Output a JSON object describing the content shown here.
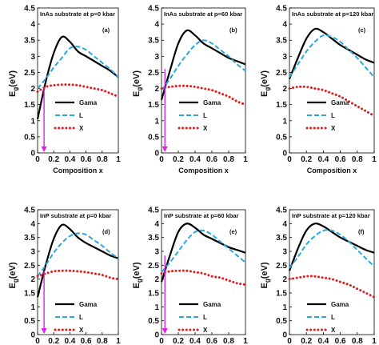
{
  "colors": {
    "Gama": "#000000",
    "L": "#29a8df",
    "X": "#e02020",
    "arrow": "#e020e0",
    "axis": "#000000"
  },
  "chart_data": [
    {
      "type": "line",
      "title": "InAs substrate at  p=0 kbar",
      "panel_label": "(a)",
      "xlabel": "",
      "ylabel": "Eg(eV)",
      "ylabel_main": "E",
      "ylabel_sub": "g",
      "ylabel_rest": "(eV)",
      "xlim": [
        0,
        1
      ],
      "ylim": [
        0,
        4.5
      ],
      "xticks": [
        "0",
        "0.2",
        "0.4",
        "0.6",
        "0.8",
        "1"
      ],
      "yticks": [
        "0",
        "0.5",
        "1",
        "1.5",
        "2",
        "2.5",
        "3",
        "3.5",
        "4",
        "4.5"
      ],
      "arrow_x": 0.08,
      "x": [
        0,
        0.1,
        0.2,
        0.3,
        0.4,
        0.5,
        0.6,
        0.7,
        0.8,
        0.9,
        1.0
      ],
      "series": [
        {
          "name": "Gama",
          "values": [
            1.05,
            2.2,
            3.1,
            3.6,
            3.45,
            3.15,
            3.0,
            2.85,
            2.7,
            2.55,
            2.35
          ]
        },
        {
          "name": "L",
          "values": [
            2.0,
            2.3,
            2.65,
            2.95,
            3.25,
            3.3,
            3.2,
            3.0,
            2.8,
            2.6,
            2.35
          ]
        },
        {
          "name": "X",
          "values": [
            1.9,
            2.05,
            2.1,
            2.12,
            2.12,
            2.1,
            2.05,
            2.0,
            1.95,
            1.85,
            1.75
          ]
        }
      ]
    },
    {
      "type": "line",
      "title": "InAs substrate at  p=60 kbar",
      "panel_label": "(b)",
      "xlabel": "",
      "ylabel": "Eg(eV)",
      "ylabel_main": "E",
      "ylabel_sub": "g",
      "ylabel_rest": "(eV)",
      "xlim": [
        0,
        1
      ],
      "ylim": [
        0,
        4.5
      ],
      "xticks": [
        "0",
        "0.2",
        "0.4",
        "0.6",
        "0.8",
        "1"
      ],
      "yticks": [
        "0",
        "0.5",
        "1",
        "1.5",
        "2",
        "2.5",
        "3",
        "3.5",
        "4",
        "4.5"
      ],
      "arrow_x": 0.04,
      "x": [
        0,
        0.1,
        0.2,
        0.3,
        0.4,
        0.5,
        0.6,
        0.7,
        0.8,
        0.9,
        1.0
      ],
      "series": [
        {
          "name": "Gama",
          "values": [
            1.65,
            2.55,
            3.4,
            3.8,
            3.65,
            3.4,
            3.25,
            3.1,
            2.95,
            2.85,
            2.75
          ]
        },
        {
          "name": "L",
          "values": [
            1.95,
            2.3,
            2.7,
            3.05,
            3.35,
            3.5,
            3.4,
            3.2,
            3.0,
            2.75,
            2.55
          ]
        },
        {
          "name": "X",
          "values": [
            2.0,
            2.05,
            2.08,
            2.08,
            2.05,
            2.0,
            1.95,
            1.85,
            1.75,
            1.6,
            1.5
          ]
        }
      ]
    },
    {
      "type": "line",
      "title": "InAs substrate at  p=120 kbar",
      "panel_label": "(c)",
      "xlabel": "",
      "ylabel": "Eg(eV)",
      "ylabel_main": "E",
      "ylabel_sub": "g",
      "ylabel_rest": "(eV)",
      "xlim": [
        0,
        1
      ],
      "ylim": [
        0,
        4.5
      ],
      "xticks": [
        "0",
        "0.2",
        "0.4",
        "0.6",
        "0.8",
        "1"
      ],
      "yticks": [
        "0",
        "0.5",
        "1",
        "1.5",
        "2",
        "2.5",
        "3",
        "3.5",
        "4",
        "4.5"
      ],
      "arrow_x": null,
      "x": [
        0,
        0.1,
        0.2,
        0.3,
        0.4,
        0.5,
        0.6,
        0.7,
        0.8,
        0.9,
        1.0
      ],
      "series": [
        {
          "name": "Gama",
          "values": [
            2.3,
            2.95,
            3.55,
            3.85,
            3.75,
            3.55,
            3.35,
            3.2,
            3.05,
            2.9,
            2.8
          ]
        },
        {
          "name": "L",
          "values": [
            2.35,
            2.75,
            3.15,
            3.45,
            3.65,
            3.6,
            3.45,
            3.2,
            2.95,
            2.65,
            2.35
          ]
        },
        {
          "name": "X",
          "values": [
            2.0,
            2.05,
            2.05,
            2.0,
            1.95,
            1.85,
            1.75,
            1.6,
            1.45,
            1.3,
            1.15
          ]
        }
      ]
    },
    {
      "type": "line",
      "title": "InP substrate at  p=0 kbar",
      "panel_label": "(d)",
      "xlabel": "",
      "ylabel": "Eg(eV)",
      "ylabel_main": "E",
      "ylabel_sub": "g",
      "ylabel_rest": "(eV)",
      "xlim": [
        0,
        1
      ],
      "ylim": [
        0,
        4.5
      ],
      "xticks": [
        "0",
        "0.2",
        "0.4",
        "0.6",
        "0.8",
        "1"
      ],
      "yticks": [
        "0",
        "0.5",
        "1",
        "1.5",
        "2",
        "2.5",
        "3",
        "3.5",
        "4",
        "4.5"
      ],
      "arrow_x": 0.08,
      "x": [
        0,
        0.1,
        0.2,
        0.3,
        0.4,
        0.5,
        0.6,
        0.7,
        0.8,
        0.9,
        1.0
      ],
      "series": [
        {
          "name": "Gama",
          "values": [
            1.35,
            2.5,
            3.45,
            3.95,
            3.8,
            3.5,
            3.3,
            3.15,
            3.0,
            2.85,
            2.75
          ]
        },
        {
          "name": "L",
          "values": [
            2.1,
            2.5,
            2.95,
            3.3,
            3.55,
            3.65,
            3.6,
            3.4,
            3.2,
            2.95,
            2.75
          ]
        },
        {
          "name": "X",
          "values": [
            2.1,
            2.2,
            2.28,
            2.3,
            2.3,
            2.28,
            2.25,
            2.2,
            2.15,
            2.05,
            2.0
          ]
        }
      ]
    },
    {
      "type": "line",
      "title": "InP substrate at  p=60 kbar",
      "panel_label": "(e)",
      "xlabel": "",
      "ylabel": "Eg(eV)",
      "ylabel_main": "E",
      "ylabel_sub": "g",
      "ylabel_rest": "(eV)",
      "xlim": [
        0,
        1
      ],
      "ylim": [
        0,
        4.5
      ],
      "xticks": [
        "0",
        "0.2",
        "0.4",
        "0.6",
        "0.8",
        "1"
      ],
      "yticks": [
        "0",
        "0.5",
        "1",
        "1.5",
        "2",
        "2.5",
        "3",
        "3.5",
        "4",
        "4.5"
      ],
      "arrow_x": 0.04,
      "x": [
        0,
        0.1,
        0.2,
        0.3,
        0.4,
        0.5,
        0.6,
        0.7,
        0.8,
        0.9,
        1.0
      ],
      "series": [
        {
          "name": "Gama",
          "values": [
            1.9,
            2.85,
            3.7,
            4.0,
            3.85,
            3.6,
            3.45,
            3.3,
            3.15,
            3.05,
            2.95
          ]
        },
        {
          "name": "L",
          "values": [
            2.25,
            2.6,
            3.0,
            3.4,
            3.7,
            3.75,
            3.6,
            3.35,
            3.1,
            2.85,
            2.6
          ]
        },
        {
          "name": "X",
          "values": [
            2.2,
            2.28,
            2.3,
            2.3,
            2.25,
            2.2,
            2.1,
            2.05,
            1.95,
            1.85,
            1.8
          ]
        }
      ]
    },
    {
      "type": "line",
      "title": "InP substrate at  p=120 kbar",
      "panel_label": "(f)",
      "xlabel": "",
      "ylabel": "Eg(eV)",
      "ylabel_main": "E",
      "ylabel_sub": "g",
      "ylabel_rest": "(eV)",
      "xlim": [
        0,
        1
      ],
      "ylim": [
        0,
        4.5
      ],
      "xticks": [
        "0",
        "0.2",
        "0.4",
        "0.6",
        "0.8",
        "1"
      ],
      "yticks": [
        "0",
        "0.5",
        "1",
        "1.5",
        "2",
        "2.5",
        "3",
        "3.5",
        "4",
        "4.5"
      ],
      "arrow_x": null,
      "x": [
        0,
        0.1,
        0.2,
        0.3,
        0.4,
        0.5,
        0.6,
        0.7,
        0.8,
        0.9,
        1.0
      ],
      "series": [
        {
          "name": "Gama",
          "values": [
            2.3,
            3.1,
            3.75,
            4.0,
            3.9,
            3.7,
            3.5,
            3.35,
            3.2,
            3.05,
            2.95
          ]
        },
        {
          "name": "L",
          "values": [
            2.4,
            2.8,
            3.25,
            3.55,
            3.75,
            3.75,
            3.6,
            3.35,
            3.05,
            2.75,
            2.45
          ]
        },
        {
          "name": "X",
          "values": [
            2.0,
            2.05,
            2.1,
            2.1,
            2.05,
            2.0,
            1.9,
            1.8,
            1.65,
            1.5,
            1.35
          ]
        }
      ]
    }
  ],
  "shared": {
    "xlabel": "Composition x"
  }
}
